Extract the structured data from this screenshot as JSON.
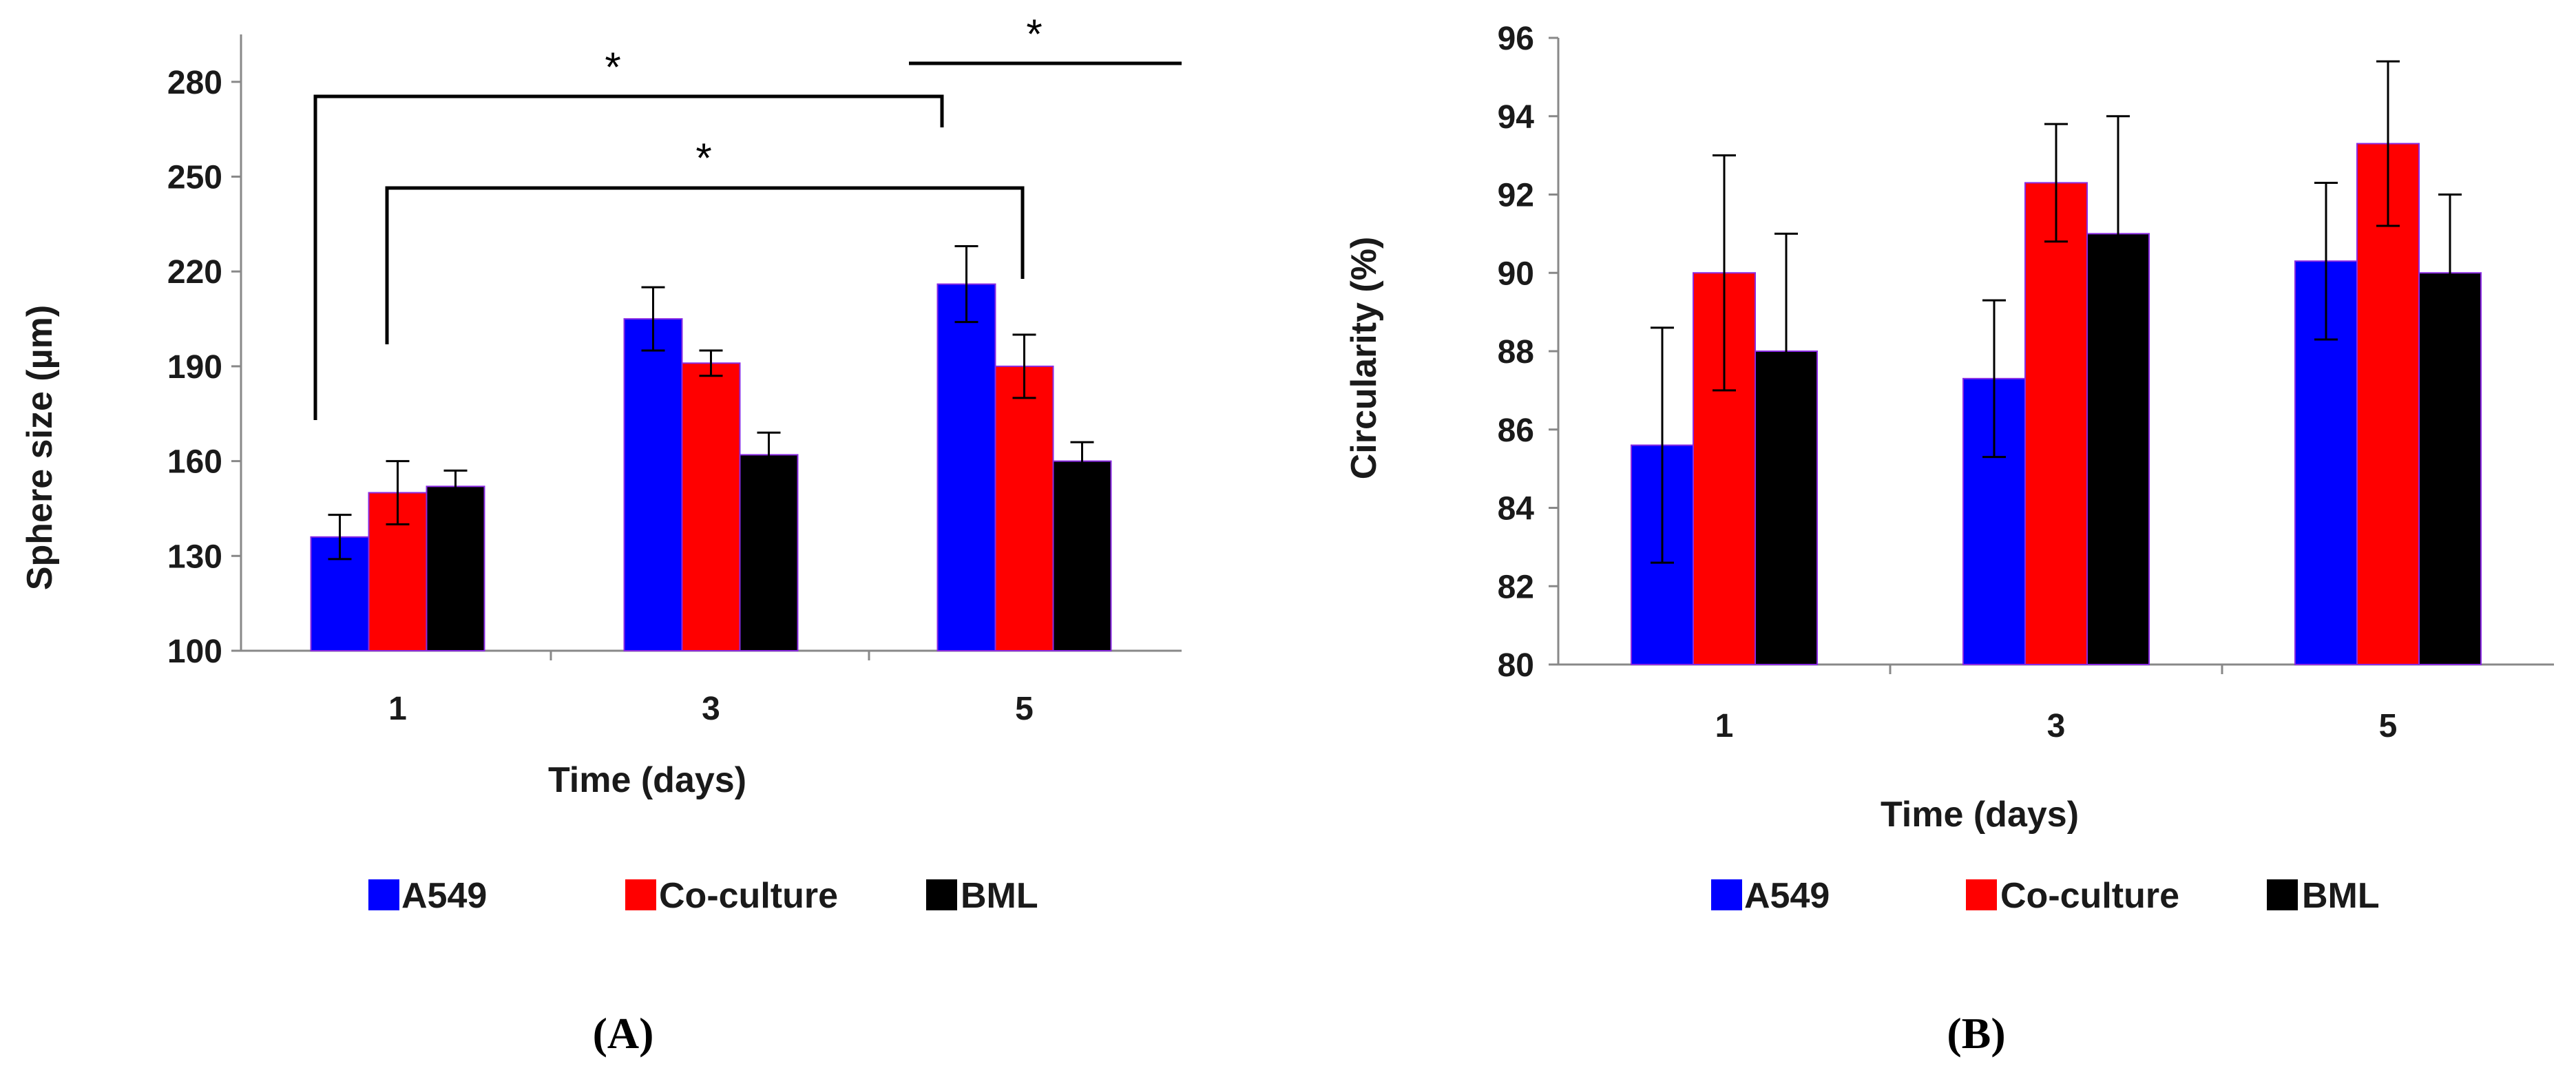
{
  "colors": {
    "A549": "#0000ff",
    "Co-culture": "#ff0000",
    "BML": "#000000",
    "bar_edge": "#8a2be2"
  },
  "chart_data": [
    {
      "type": "bar",
      "panel_label": "(A)",
      "xlabel": "Time (days)",
      "ylabel": "Sphere size (µm)",
      "categories": [
        "1",
        "3",
        "5"
      ],
      "ylim": [
        100,
        295
      ],
      "yticks": [
        100,
        130,
        160,
        190,
        220,
        250,
        280
      ],
      "series": [
        {
          "name": "A549",
          "values": [
            136,
            205,
            216
          ],
          "errors": [
            7,
            10,
            12
          ]
        },
        {
          "name": "Co-culture",
          "values": [
            150,
            191,
            190
          ],
          "errors": [
            10,
            4,
            10
          ]
        },
        {
          "name": "BML",
          "values": [
            152,
            162,
            160
          ],
          "errors": [
            5,
            7,
            6
          ]
        }
      ],
      "legend": [
        "A549",
        "Co-culture",
        "BML"
      ],
      "annotations": [
        "*",
        "*",
        "*"
      ]
    },
    {
      "type": "bar",
      "panel_label": "(B)",
      "xlabel": "Time (days)",
      "ylabel": "Circularity (%)",
      "categories": [
        "1",
        "3",
        "5"
      ],
      "ylim": [
        80,
        96
      ],
      "yticks": [
        80,
        82,
        84,
        86,
        88,
        90,
        92,
        94,
        96
      ],
      "series": [
        {
          "name": "A549",
          "values": [
            85.6,
            87.3,
            90.3
          ],
          "errors": [
            3.0,
            2.0,
            2.0
          ]
        },
        {
          "name": "Co-culture",
          "values": [
            90.0,
            92.3,
            93.3
          ],
          "errors": [
            3.0,
            1.5,
            2.1
          ]
        },
        {
          "name": "BML",
          "values": [
            88.0,
            91.0,
            90.0
          ],
          "errors": [
            3.0,
            3.0,
            2.0
          ]
        }
      ],
      "legend": [
        "A549",
        "Co-culture",
        "BML"
      ]
    }
  ]
}
